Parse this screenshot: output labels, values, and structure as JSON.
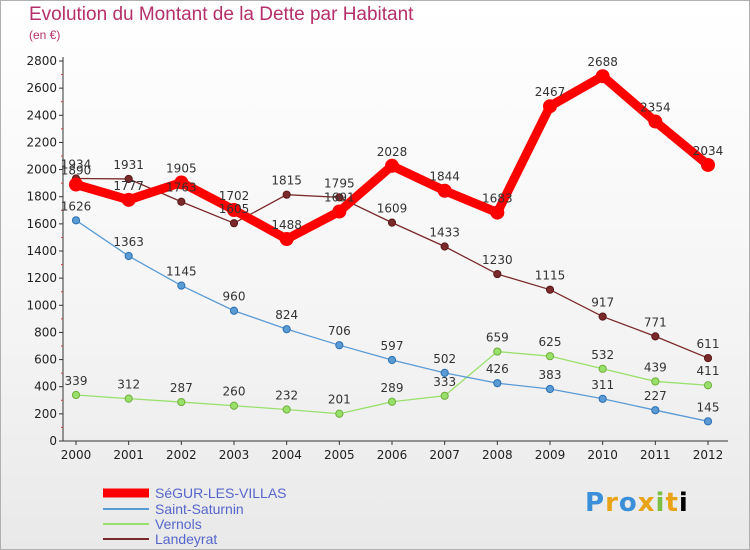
{
  "chart_data": {
    "type": "line",
    "title": "Evolution du Montant de la Dette par Habitant",
    "subtitle": "(en €)",
    "x": [
      "2000",
      "2001",
      "2002",
      "2003",
      "2004",
      "2005",
      "2006",
      "2007",
      "2008",
      "2009",
      "2010",
      "2011",
      "2012"
    ],
    "ylim": [
      0,
      2800
    ],
    "yticks": [
      0,
      200,
      400,
      600,
      800,
      1000,
      1200,
      1400,
      1600,
      1800,
      2000,
      2200,
      2400,
      2600,
      2800
    ],
    "grid": false,
    "legend_position": "bottom-left",
    "series": [
      {
        "name": "SéGUR-LES-VILLAS",
        "color": "#ff0000",
        "values": [
          1890,
          1777,
          1905,
          1702,
          1488,
          1691,
          2028,
          1844,
          1683,
          2467,
          2688,
          2354,
          2034
        ]
      },
      {
        "name": "Saint-Saturnin",
        "color": "#5b9bd5",
        "values": [
          1626,
          1363,
          1145,
          960,
          824,
          706,
          597,
          502,
          426,
          383,
          311,
          227,
          145
        ]
      },
      {
        "name": "Vernols",
        "color": "#99e06b",
        "values": [
          339,
          312,
          287,
          260,
          232,
          201,
          289,
          333,
          659,
          625,
          532,
          439,
          411
        ]
      },
      {
        "name": "Landeyrat",
        "color": "#7a2a2a",
        "values": [
          1934,
          1931,
          1763,
          1605,
          1815,
          1795,
          1609,
          1433,
          1230,
          1115,
          917,
          771,
          611
        ]
      }
    ]
  },
  "brand": {
    "letters": [
      "P",
      "r",
      "o",
      "x",
      "i",
      "t",
      "i"
    ]
  }
}
